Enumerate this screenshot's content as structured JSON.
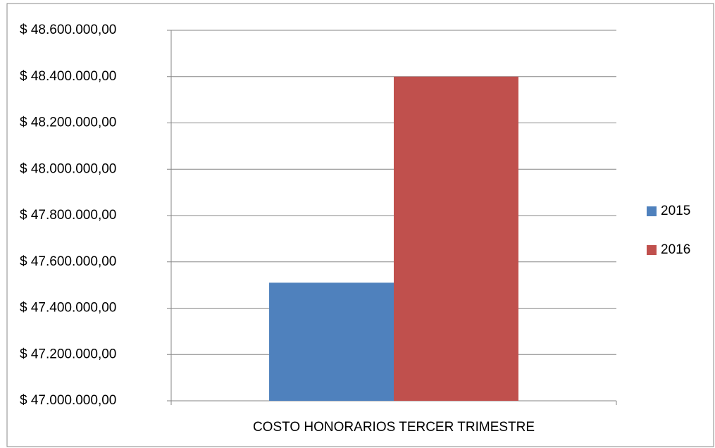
{
  "chart_data": {
    "type": "bar",
    "categories": [
      "COSTO HONORARIOS TERCER TRIMESTRE"
    ],
    "series": [
      {
        "name": "2015",
        "color": "#4f81bd",
        "values": [
          47510000
        ]
      },
      {
        "name": "2016",
        "color": "#c0504d",
        "values": [
          48400000
        ]
      }
    ],
    "ylim": [
      47000000,
      48600000
    ],
    "yticks": [
      {
        "value": 47000000,
        "label": "$ 47.000.000,00"
      },
      {
        "value": 47200000,
        "label": "$ 47.200.000,00"
      },
      {
        "value": 47400000,
        "label": "$ 47.400.000,00"
      },
      {
        "value": 47600000,
        "label": "$ 47.600.000,00"
      },
      {
        "value": 47800000,
        "label": "$ 47.800.000,00"
      },
      {
        "value": 48000000,
        "label": "$ 48.000.000,00"
      },
      {
        "value": 48200000,
        "label": "$ 48.200.000,00"
      },
      {
        "value": 48400000,
        "label": "$ 48.400.000,00"
      },
      {
        "value": 48600000,
        "label": "$ 48.600.000,00"
      }
    ],
    "grid": true,
    "legend": "right"
  }
}
